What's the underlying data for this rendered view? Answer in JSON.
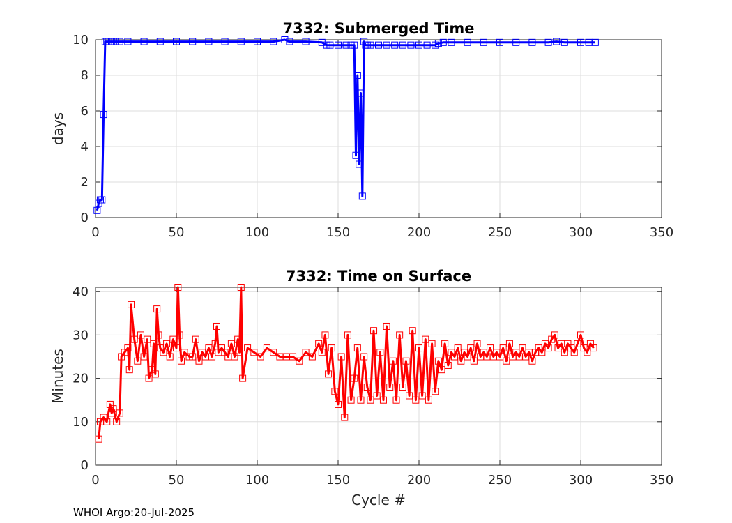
{
  "footer": "WHOI Argo:20-Jul-2025",
  "chart_data": [
    {
      "type": "line",
      "title": "7332: Submerged Time",
      "xlabel": "",
      "ylabel": "days",
      "xlim": [
        0,
        350
      ],
      "ylim": [
        0,
        10
      ],
      "xticks": [
        0,
        50,
        100,
        150,
        200,
        250,
        300,
        350
      ],
      "yticks": [
        0,
        2,
        4,
        6,
        8,
        10
      ],
      "grid": true,
      "color": "#0000ff",
      "marker": "square",
      "series": [
        {
          "name": "Submerged Time",
          "x": [
            1,
            2,
            3,
            4,
            5,
            6,
            7,
            8,
            9,
            10,
            12,
            15,
            20,
            30,
            40,
            50,
            60,
            70,
            80,
            90,
            100,
            110,
            117,
            120,
            130,
            140,
            143,
            145,
            150,
            155,
            158,
            160,
            161,
            162,
            163,
            164,
            165,
            166,
            167,
            168,
            170,
            175,
            180,
            185,
            190,
            195,
            200,
            205,
            210,
            212,
            215,
            220,
            230,
            240,
            250,
            260,
            270,
            280,
            285,
            290,
            300,
            305,
            309
          ],
          "values": [
            0.4,
            0.8,
            1.0,
            1.0,
            5.8,
            9.9,
            9.9,
            9.9,
            9.9,
            9.9,
            9.9,
            9.9,
            9.9,
            9.9,
            9.9,
            9.9,
            9.9,
            9.9,
            9.9,
            9.9,
            9.9,
            9.9,
            10.0,
            9.9,
            9.9,
            9.85,
            9.7,
            9.7,
            9.7,
            9.7,
            9.7,
            9.7,
            3.5,
            8.0,
            3.0,
            7.0,
            1.2,
            9.9,
            9.7,
            9.7,
            9.7,
            9.7,
            9.7,
            9.7,
            9.7,
            9.7,
            9.7,
            9.7,
            9.7,
            9.8,
            9.85,
            9.85,
            9.85,
            9.85,
            9.85,
            9.85,
            9.85,
            9.85,
            9.9,
            9.85,
            9.85,
            9.85,
            9.85
          ]
        }
      ]
    },
    {
      "type": "line",
      "title": "7332: Time on Surface",
      "xlabel": "Cycle #",
      "ylabel": "Minutes",
      "xlim": [
        0,
        350
      ],
      "ylim": [
        0,
        41
      ],
      "xticks": [
        0,
        50,
        100,
        150,
        200,
        250,
        300,
        350
      ],
      "yticks": [
        0,
        10,
        20,
        30,
        40
      ],
      "grid": true,
      "color": "#ff0000",
      "marker": "square",
      "series": [
        {
          "name": "Time on Surface",
          "x": [
            2,
            3,
            5,
            7,
            9,
            10,
            11,
            13,
            15,
            16,
            18,
            20,
            21,
            22,
            24,
            26,
            28,
            30,
            32,
            33,
            35,
            36,
            37,
            38,
            39,
            40,
            42,
            44,
            46,
            48,
            50,
            51,
            52,
            53,
            55,
            58,
            60,
            62,
            64,
            66,
            68,
            70,
            72,
            74,
            75,
            76,
            78,
            80,
            82,
            84,
            86,
            88,
            89,
            90,
            91,
            94,
            98,
            102,
            106,
            110,
            114,
            118,
            122,
            126,
            130,
            134,
            138,
            140,
            142,
            144,
            146,
            148,
            150,
            152,
            154,
            156,
            158,
            160,
            162,
            164,
            166,
            168,
            170,
            172,
            174,
            176,
            178,
            180,
            182,
            184,
            186,
            188,
            190,
            192,
            194,
            196,
            198,
            200,
            202,
            204,
            206,
            208,
            210,
            212,
            214,
            216,
            218,
            220,
            222,
            224,
            226,
            228,
            230,
            232,
            234,
            236,
            238,
            240,
            242,
            244,
            246,
            248,
            250,
            252,
            254,
            256,
            258,
            260,
            262,
            264,
            266,
            268,
            270,
            272,
            274,
            276,
            278,
            280,
            282,
            284,
            286,
            288,
            290,
            292,
            294,
            296,
            298,
            300,
            302,
            304,
            306,
            308
          ],
          "values": [
            6,
            10,
            11,
            10,
            14,
            12,
            13,
            10,
            12,
            25,
            26,
            27,
            22,
            37,
            29,
            24,
            30,
            25,
            29,
            20,
            22,
            28,
            21,
            36,
            30,
            27,
            26,
            28,
            25,
            29,
            27,
            41,
            30,
            24,
            26,
            25,
            25,
            29,
            24,
            26,
            25,
            27,
            25,
            28,
            32,
            26,
            27,
            26,
            25,
            28,
            25,
            29,
            26,
            41,
            20,
            27,
            26,
            25,
            27,
            26,
            25,
            25,
            25,
            24,
            26,
            25,
            28,
            26,
            30,
            21,
            27,
            17,
            14,
            25,
            11,
            30,
            15,
            20,
            27,
            15,
            25,
            18,
            15,
            31,
            16,
            26,
            15,
            32,
            18,
            24,
            15,
            30,
            18,
            24,
            16,
            31,
            15,
            27,
            16,
            29,
            15,
            28,
            17,
            24,
            22,
            28,
            23,
            26,
            25,
            27,
            24,
            26,
            25,
            27,
            24,
            28,
            25,
            26,
            25,
            27,
            25,
            26,
            25,
            27,
            24,
            28,
            25,
            26,
            25,
            27,
            25,
            26,
            24,
            26,
            27,
            26,
            28,
            27,
            29,
            30,
            27,
            28,
            26,
            28,
            27,
            26,
            28,
            30,
            27,
            26,
            28,
            27
          ]
        }
      ]
    }
  ]
}
